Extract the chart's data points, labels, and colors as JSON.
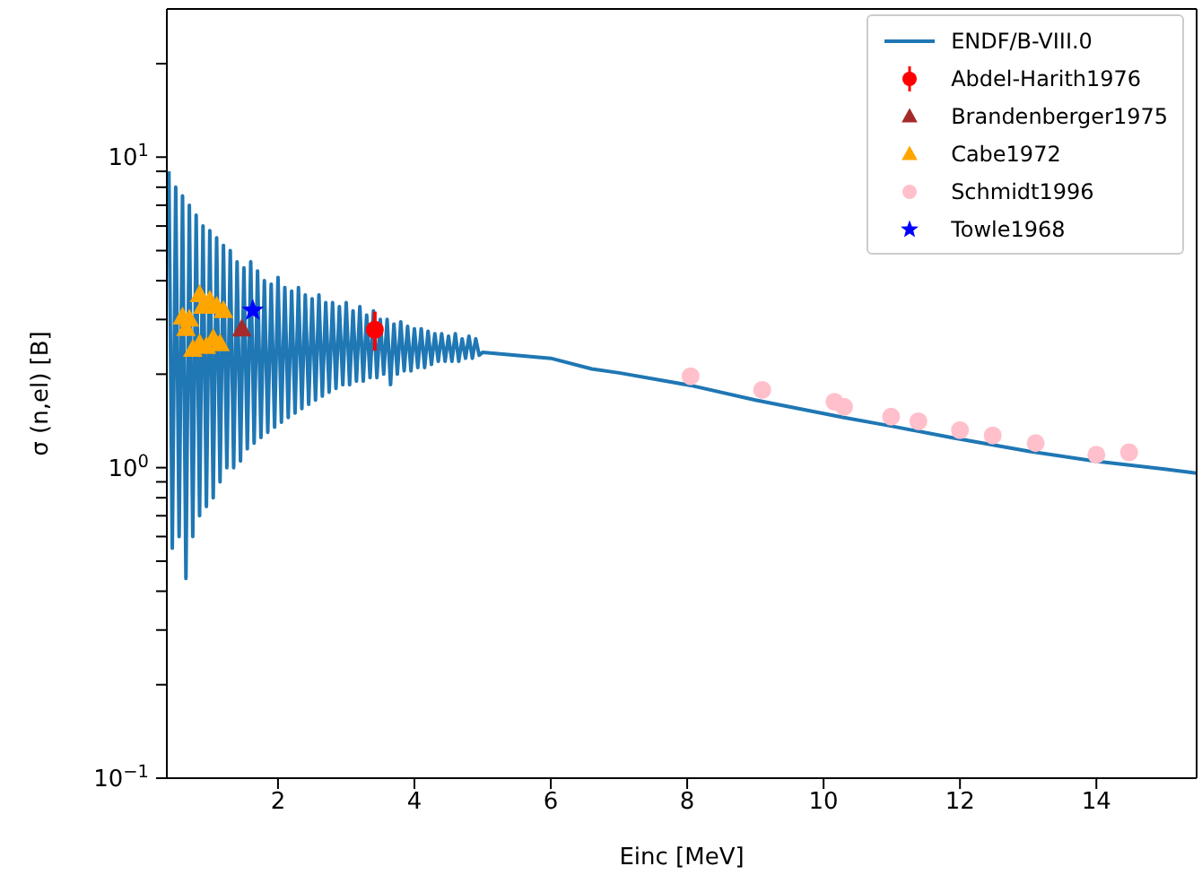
{
  "chart_data": {
    "type": "line",
    "xlabel": "Einc [MeV]",
    "ylabel": "σ (n,el) [B]",
    "log": "y",
    "xlim": [
      0.37,
      15.47
    ],
    "xticks": [
      2,
      4,
      6,
      8,
      10,
      12,
      14
    ],
    "ylim": [
      0.1,
      30
    ],
    "yticks": [
      {
        "value": 0.1,
        "label": "10$^{−1}$"
      },
      {
        "value": 0.2,
        "label": null
      },
      {
        "value": 0.3,
        "label": null
      },
      {
        "value": 0.4,
        "label": null
      },
      {
        "value": 0.5,
        "label": null
      },
      {
        "value": 0.6,
        "label": null
      },
      {
        "value": 0.7,
        "label": null
      },
      {
        "value": 0.8,
        "label": null
      },
      {
        "value": 0.9,
        "label": null
      },
      {
        "value": 1,
        "label": "10$^{0}$"
      },
      {
        "value": 2,
        "label": null
      },
      {
        "value": 3,
        "label": null
      },
      {
        "value": 4,
        "label": null
      },
      {
        "value": 5,
        "label": null
      },
      {
        "value": 6,
        "label": null
      },
      {
        "value": 7,
        "label": null
      },
      {
        "value": 8,
        "label": null
      },
      {
        "value": 9,
        "label": null
      },
      {
        "value": 10,
        "label": "10$^{1}$"
      },
      {
        "value": 20,
        "label": null
      }
    ],
    "legend": "top right",
    "grid": false,
    "series": [
      {
        "name": "ENDF/B-VIII.0",
        "color": "#1f77b4",
        "marker": "none",
        "x": [
          0.4,
          0.45,
          0.5,
          0.55,
          0.6,
          0.65,
          0.7,
          0.75,
          0.8,
          0.85,
          0.9,
          0.95,
          1.0,
          1.05,
          1.1,
          1.15,
          1.2,
          1.25,
          1.3,
          1.35,
          1.4,
          1.45,
          1.5,
          1.55,
          1.6,
          1.65,
          1.7,
          1.75,
          1.8,
          1.85,
          1.9,
          1.95,
          2.0,
          2.05,
          2.1,
          2.15,
          2.2,
          2.25,
          2.3,
          2.35,
          2.4,
          2.45,
          2.5,
          2.55,
          2.6,
          2.65,
          2.7,
          2.75,
          2.8,
          2.85,
          2.9,
          2.95,
          3.0,
          3.05,
          3.1,
          3.15,
          3.2,
          3.25,
          3.3,
          3.35,
          3.4,
          3.45,
          3.5,
          3.55,
          3.6,
          3.65,
          3.7,
          3.75,
          3.8,
          3.85,
          3.9,
          3.95,
          4.0,
          4.05,
          4.1,
          4.15,
          4.2,
          4.25,
          4.3,
          4.35,
          4.4,
          4.45,
          4.5,
          4.55,
          4.6,
          4.65,
          4.7,
          4.75,
          4.8,
          4.85,
          4.9,
          4.95,
          5.0,
          6.0,
          6.6,
          7.0,
          8.05,
          9.0,
          10.3,
          11.0,
          11.87,
          13.0,
          13.97,
          15.0,
          15.47
        ],
        "values": [
          9.0,
          0.55,
          8.0,
          0.6,
          7.5,
          0.44,
          7.0,
          0.6,
          6.5,
          0.7,
          6.0,
          0.75,
          5.8,
          0.8,
          5.5,
          0.9,
          5.2,
          1.0,
          5.0,
          1.0,
          4.6,
          1.05,
          4.4,
          1.15,
          4.6,
          1.2,
          4.3,
          1.25,
          4.0,
          1.3,
          3.9,
          1.35,
          4.1,
          1.4,
          3.8,
          1.45,
          3.7,
          1.5,
          3.8,
          1.55,
          3.6,
          1.6,
          3.5,
          1.65,
          3.6,
          1.7,
          3.4,
          1.75,
          3.4,
          1.8,
          3.3,
          1.85,
          3.4,
          1.85,
          3.2,
          1.9,
          3.3,
          1.9,
          3.1,
          1.95,
          3.2,
          1.95,
          3.0,
          2.0,
          3.0,
          1.85,
          2.9,
          2.0,
          2.95,
          2.05,
          2.85,
          2.05,
          2.8,
          2.1,
          2.8,
          2.1,
          2.75,
          2.15,
          2.7,
          2.2,
          2.7,
          2.2,
          2.65,
          2.2,
          2.7,
          2.2,
          2.6,
          2.25,
          2.65,
          2.25,
          2.6,
          2.3,
          2.35,
          2.25,
          2.08,
          2.02,
          1.84,
          1.65,
          1.45,
          1.36,
          1.25,
          1.13,
          1.05,
          0.99,
          0.96
        ]
      },
      {
        "name": "Abdel-Harith1976",
        "type": "scatter",
        "color": "#ff0000",
        "marker": "circle",
        "x": [
          3.42
        ],
        "values": [
          2.78
        ],
        "errors": [
          0.4
        ]
      },
      {
        "name": "Brandenberger1975",
        "type": "scatter",
        "color": "#a52a2a",
        "marker": "triangle",
        "x": [
          1.47
        ],
        "values": [
          2.79
        ]
      },
      {
        "name": "Cabe1972",
        "type": "scatter",
        "color": "#ffa500",
        "marker": "triangle",
        "x": [
          0.6,
          0.65,
          0.7,
          0.85,
          0.9,
          1.0,
          1.1,
          1.2,
          0.75,
          0.85,
          0.95,
          1.05,
          1.15
        ],
        "values": [
          3.05,
          2.8,
          3.0,
          3.6,
          3.3,
          3.45,
          3.3,
          3.2,
          2.4,
          2.5,
          2.45,
          2.6,
          2.5
        ]
      },
      {
        "name": "Schmidt1996",
        "type": "scatter",
        "color": "#ffc0cb",
        "marker": "circle",
        "x": [
          8.05,
          9.1,
          10.16,
          10.3,
          10.99,
          11.39,
          12.0,
          12.48,
          13.11,
          14.0,
          14.48
        ],
        "values": [
          1.97,
          1.78,
          1.63,
          1.57,
          1.46,
          1.41,
          1.32,
          1.27,
          1.2,
          1.1,
          1.12
        ]
      },
      {
        "name": "Towle1968",
        "type": "scatter",
        "color": "#0000ff",
        "marker": "star",
        "x": [
          1.63
        ],
        "values": [
          3.21
        ]
      }
    ]
  }
}
